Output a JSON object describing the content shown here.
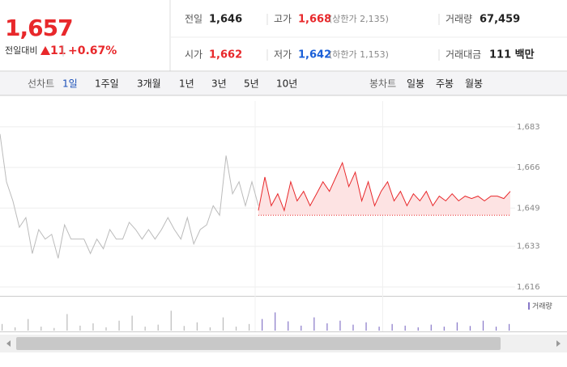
{
  "quote": {
    "price": "1,657",
    "change_label": "전일대비",
    "change": "11",
    "change_pct": "+0.67%",
    "rows": [
      [
        {
          "label": "전일",
          "value": "1,646"
        },
        {
          "label": "고가",
          "value": "1,668",
          "extra": "(상한가 2,135)"
        },
        {
          "label": "거래량",
          "value": "67,459"
        }
      ],
      [
        {
          "label": "시가",
          "value": "1,662"
        },
        {
          "label": "저가",
          "value": "1,642",
          "extra": "(하한가 1,153)"
        },
        {
          "label": "거래대금",
          "value": "111 백만"
        }
      ]
    ]
  },
  "toolbar": {
    "line_label": "선차트",
    "periods": [
      "1일",
      "1주일",
      "3개월",
      "1년",
      "3년",
      "5년",
      "10년"
    ],
    "candle_label": "봉차트",
    "candle_periods": [
      "일봉",
      "주봉",
      "월봉"
    ]
  },
  "chart_data": {
    "type": "line",
    "ylim": [
      1612.6,
      1693.8
    ],
    "yticks": [
      {
        "value": 1616,
        "label": "1,616"
      },
      {
        "value": 1633,
        "label": "1,633"
      },
      {
        "value": 1649,
        "label": "1,649"
      },
      {
        "value": 1666,
        "label": "1,666"
      },
      {
        "value": 1683,
        "label": "1,683"
      }
    ],
    "baseline": 1646,
    "series": [
      {
        "color": "#bbbbbb",
        "values": [
          1680,
          1660,
          1652,
          1641,
          1645,
          1630,
          1640,
          1636,
          1638,
          1628,
          1642,
          1636,
          1636,
          1636,
          1630,
          1636,
          1632,
          1640,
          1636,
          1636,
          1643,
          1640,
          1636,
          1640,
          1636,
          1640,
          1645,
          1640,
          1636,
          1645,
          1634,
          1640,
          1642,
          1650,
          1646,
          1671,
          1655,
          1660,
          1650,
          1660,
          1650,
          null,
          null,
          null,
          null,
          null,
          null,
          null,
          null,
          null,
          null,
          null,
          null,
          null,
          null,
          null,
          null,
          null,
          null,
          null,
          null,
          null,
          null,
          null,
          null,
          null,
          null,
          null,
          null,
          null,
          null,
          null,
          null,
          null,
          null,
          null,
          null,
          null,
          null,
          null
        ]
      },
      {
        "color": "#e8282b",
        "fill": "#fde3e3",
        "values": [
          null,
          null,
          null,
          null,
          null,
          null,
          null,
          null,
          null,
          null,
          null,
          null,
          null,
          null,
          null,
          null,
          null,
          null,
          null,
          null,
          null,
          null,
          null,
          null,
          null,
          null,
          null,
          null,
          null,
          null,
          null,
          null,
          null,
          null,
          null,
          null,
          null,
          null,
          null,
          null,
          1648,
          1662,
          1650,
          1655,
          1648,
          1660,
          1652,
          1656,
          1650,
          1655,
          1660,
          1656,
          1662,
          1668,
          1658,
          1664,
          1652,
          1660,
          1650,
          1656,
          1660,
          1652,
          1656,
          1650,
          1655,
          1652,
          1656,
          1650,
          1654,
          1652,
          1655,
          1652,
          1654,
          1653,
          1654,
          1652,
          1654,
          1654,
          1653,
          1656
        ]
      }
    ],
    "volume": {
      "label": "거래량",
      "color": "#8878c8",
      "vlim": [
        0,
        100
      ],
      "values": [
        20,
        10,
        35,
        12,
        8,
        50,
        15,
        22,
        10,
        30,
        45,
        12,
        18,
        60,
        14,
        25,
        10,
        40,
        12,
        20,
        35,
        55,
        28,
        15,
        40,
        22,
        30,
        18,
        25,
        12,
        20,
        15,
        10,
        18,
        12,
        25,
        14,
        30,
        12,
        20
      ]
    }
  }
}
